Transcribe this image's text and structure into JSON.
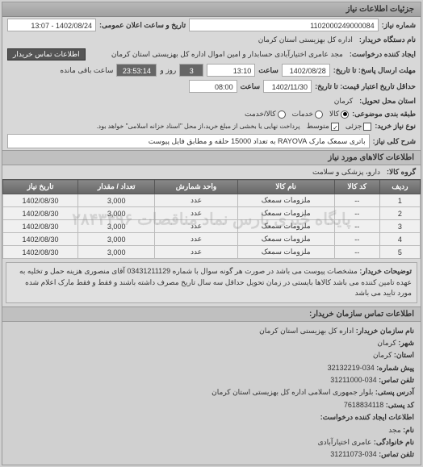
{
  "panel_title": "جزئیات اطلاعات نیاز",
  "header": {
    "number_label": "شماره نیاز:",
    "number_value": "1102000249000084",
    "datetime_label": "تاریخ و ساعت اعلان عمومی:",
    "datetime_value": "1402/08/24 - 13:07"
  },
  "buyer": {
    "org_label": "نام دستگاه خریدار:",
    "org_value": "اداره کل بهزیستی استان کرمان",
    "requester_label": "ایجاد کننده درخواست:",
    "requester_value": "مجد عامری اختیارآبادی حسابدار و امین اموال اداره کل بهزیستی استان کرمان",
    "contact_btn": "اطلاعات تماس خریدار"
  },
  "deadlines": {
    "send_until_label": "مهلت ارسال پاسخ: تا تاریخ:",
    "send_until_date": "1402/08/28",
    "time_label": "ساعت",
    "send_until_time": "13:10",
    "remaining_days": "3",
    "remaining_days_label": "روز و",
    "remaining_time": "23:53:14",
    "remaining_suffix": "ساعت باقی مانده",
    "valid_until_label": "حداقل تاریخ اعتبار قیمت: تا تاریخ:",
    "valid_until_date": "1402/11/30",
    "valid_until_time": "08:00"
  },
  "delivery": {
    "place_label": "استان محل تحویل:",
    "place_value": "کرمان",
    "pack_label": "طبقه بندی موضوعی:",
    "pack_options": {
      "kala": "کالا",
      "khadamat": "خدمات",
      "both": "کالا/خدمت"
    },
    "type_label": "نوع نیاز خرید:",
    "type_options": {
      "jozi": "جزئی",
      "motevaset": "متوسط"
    },
    "type_note": "پرداخت نهایی یا بخشی از مبلغ خرید،از محل \"اسناد خزانه اسلامی\" خواهد بود.",
    "desc_label": "شرح کلی نیاز:",
    "desc_value": "باتری سمعک مارک RAYOVA به تعداد 15000 حلقه و مطابق فایل پیوست"
  },
  "goods_section_title": "اطلاعات کالاهای مورد نیاز",
  "goods_group_label": "گروه کالا:",
  "goods_group_value": "دارو، پزشکی و سلامت",
  "table": {
    "columns": [
      "ردیف",
      "کد کالا",
      "نام کالا",
      "واحد شمارش",
      "تعداد / مقدار",
      "تاریخ نیاز"
    ],
    "rows": [
      [
        "1",
        "--",
        "ملزومات سمعک",
        "عدد",
        "3,000",
        "1402/08/30"
      ],
      [
        "2",
        "--",
        "ملزومات سمعک",
        "عدد",
        "3,000",
        "1402/08/30"
      ],
      [
        "3",
        "--",
        "ملزومات سمعک",
        "عدد",
        "3,000",
        "1402/08/30"
      ],
      [
        "4",
        "--",
        "ملزومات سمعک",
        "عدد",
        "3,000",
        "1402/08/30"
      ],
      [
        "5",
        "--",
        "ملزومات سمعک",
        "عدد",
        "3,000",
        "1402/08/30"
      ]
    ],
    "watermark": "پایگاه خبری پارس نماد مناقصات ۲۸۴۳۴۹۶"
  },
  "notes": {
    "label": "توضیحات خریدار:",
    "text": "مشخصات پیوست می باشد در صورت هر گونه سوال با شماره 03431211129 آقای منصوری هزینه حمل و تخلیه به عهده تامین کننده می باشد کالاها بایستی در زمان تحویل حداقل سه سال تاریخ مصرف داشته باشند و فقط و فقط مارک اعلام شده مورد تایید می باشد"
  },
  "contact": {
    "title": "اطلاعات تماس سازمان خریدار:",
    "org_name_label": "نام سازمان خریدار:",
    "org_name": "اداره کل بهزیستی استان کرمان",
    "city_label": "شهر:",
    "city": "کرمان",
    "province_label": "استان:",
    "province": "کرمان",
    "prefix_label": "پیش شماره:",
    "prefix": "034-32132219",
    "phone_label": "تلفن تماس:",
    "phone": "034-31211000",
    "address_label": "آدرس پستی:",
    "address": "بلوار جمهوری اسلامی اداره کل بهزیستی استان کرمان",
    "postal_label": "کد پستی:",
    "postal": "7618834118",
    "creator_section": "اطلاعات ایجاد کننده درخواست:",
    "name_label": "نام:",
    "name": "مجد",
    "family_label": "نام خانوادگی:",
    "family": "عامری اختیارآبادی",
    "creator_phone_label": "تلفن تماس:",
    "creator_phone": "034-31211073"
  }
}
